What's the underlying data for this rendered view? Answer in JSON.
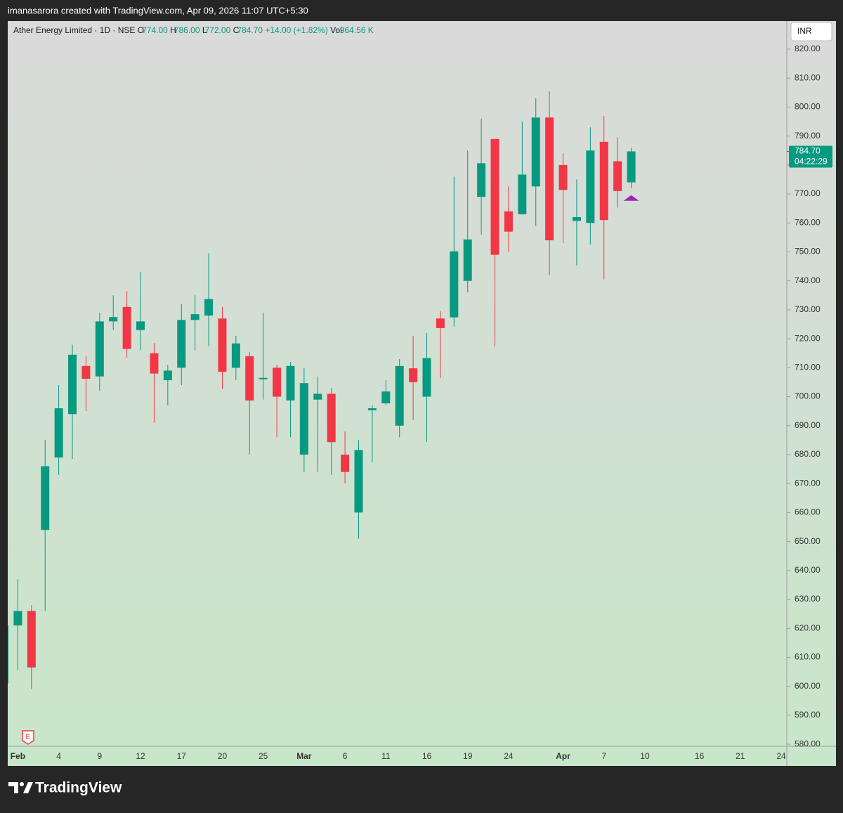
{
  "header": "imanasarora created with TradingView.com, Apr 09, 2026 11:07 UTC+5:30",
  "footer": {
    "brand": "TradingView"
  },
  "chart_data": {
    "type": "candlestick",
    "legend": {
      "symbol": "Ather Energy Limited · 1D · NSE",
      "open_label": "O",
      "open": "774.00",
      "high_label": "H",
      "high": "786.00",
      "low_label": "L",
      "low": "772.00",
      "close_label": "C",
      "close": "784.70",
      "change": "+14.00 (+1.82%)",
      "volume_label": "Vol",
      "volume": "964.56 K"
    },
    "currency": "INR",
    "earnings_marker": "E",
    "last_price": {
      "value": 784.7,
      "label": "784.70"
    },
    "countdown": "04:22:29",
    "up_color": "#089981",
    "down_color": "#f23645",
    "categories": [
      null,
      "Feb",
      null,
      null,
      "4",
      null,
      null,
      "9",
      null,
      null,
      "12",
      null,
      null,
      "17",
      null,
      null,
      "20",
      null,
      null,
      "25",
      null,
      null,
      "Mar",
      null,
      null,
      "6",
      null,
      null,
      "11",
      null,
      null,
      "16",
      null,
      null,
      "19",
      null,
      null,
      "24",
      null,
      null,
      null,
      "Apr",
      null,
      null,
      "7",
      null,
      null,
      "10",
      null,
      null,
      null,
      "16",
      null,
      null,
      "21",
      null,
      null,
      "24"
    ],
    "open": [
      601,
      621,
      626,
      654,
      679,
      694,
      710.6,
      707,
      726,
      731,
      723,
      715,
      705.7,
      710,
      726.5,
      728,
      727,
      710,
      714,
      706,
      710,
      698.7,
      680,
      699,
      701,
      680,
      660,
      695.3,
      697.7,
      690,
      709.8,
      700,
      727,
      727.4,
      740,
      769,
      789,
      764,
      763,
      772.6,
      796.4,
      780,
      760.7,
      760,
      788,
      781.3,
      774,
      null,
      null,
      null,
      null,
      null,
      null,
      null,
      null,
      null,
      null,
      null
    ],
    "high": [
      622,
      637,
      628,
      685,
      704,
      718,
      714,
      729,
      735,
      736.5,
      743,
      718.5,
      711,
      732,
      735,
      749.5,
      731,
      721,
      715.4,
      729,
      711,
      712,
      710,
      707,
      703,
      688,
      685,
      697,
      705.7,
      713,
      721,
      722,
      729.5,
      776,
      785,
      796,
      789,
      772.6,
      795,
      803,
      805.4,
      784,
      775,
      793,
      797,
      789.6,
      786,
      null,
      null,
      null,
      null,
      null,
      null,
      null,
      null,
      null,
      null,
      null
    ],
    "low": [
      600,
      605.5,
      599,
      626,
      673,
      678.5,
      695,
      702,
      723,
      713.5,
      716,
      691,
      697,
      704,
      716,
      717.4,
      702.6,
      705.7,
      680,
      699,
      686,
      686,
      674,
      674,
      673,
      670,
      651,
      677.5,
      697,
      686,
      692,
      684.3,
      706.4,
      724.2,
      736,
      756,
      717.4,
      750,
      762.9,
      759,
      742,
      753,
      745.3,
      752.6,
      740.5,
      765.3,
      772,
      null,
      null,
      null,
      null,
      null,
      null,
      null,
      null,
      null,
      null,
      null
    ],
    "close": [
      621,
      626,
      606.5,
      676,
      696,
      714.5,
      706.2,
      726,
      727.5,
      716.5,
      726,
      708,
      709,
      726.5,
      728.5,
      733.7,
      708.6,
      718.4,
      698.7,
      706.5,
      700,
      710.6,
      704.7,
      701,
      684.3,
      674,
      681.6,
      696,
      701.8,
      710.6,
      705,
      713.3,
      723.7,
      750.2,
      754.3,
      780.6,
      749,
      757,
      776.7,
      796.4,
      754,
      771.4,
      762,
      785,
      761,
      771,
      784.7,
      null,
      null,
      null,
      null,
      null,
      null,
      null,
      null,
      null,
      null,
      null
    ],
    "ylim": [
      579.3,
      829.7
    ],
    "yticks": [
      {
        "value": 580,
        "label": "580.00"
      },
      {
        "value": 590,
        "label": "590.00"
      },
      {
        "value": 600,
        "label": "600.00"
      },
      {
        "value": 610,
        "label": "610.00"
      },
      {
        "value": 620,
        "label": "620.00"
      },
      {
        "value": 630,
        "label": "630.00"
      },
      {
        "value": 640,
        "label": "640.00"
      },
      {
        "value": 650,
        "label": "650.00"
      },
      {
        "value": 660,
        "label": "660.00"
      },
      {
        "value": 670,
        "label": "670.00"
      },
      {
        "value": 680,
        "label": "680.00"
      },
      {
        "value": 690,
        "label": "690.00"
      },
      {
        "value": 700,
        "label": "700.00"
      },
      {
        "value": 710,
        "label": "710.00"
      },
      {
        "value": 720,
        "label": "720.00"
      },
      {
        "value": 730,
        "label": "730.00"
      },
      {
        "value": 740,
        "label": "740.00"
      },
      {
        "value": 750,
        "label": "750.00"
      },
      {
        "value": 760,
        "label": "760.00"
      },
      {
        "value": 770,
        "label": "770.00"
      },
      {
        "value": 780,
        "label": "780.00"
      },
      {
        "value": 790,
        "label": "790.00"
      },
      {
        "value": 800,
        "label": "800.00"
      },
      {
        "value": 810,
        "label": "810.00"
      },
      {
        "value": 820,
        "label": "820.00"
      }
    ],
    "grid": false
  }
}
